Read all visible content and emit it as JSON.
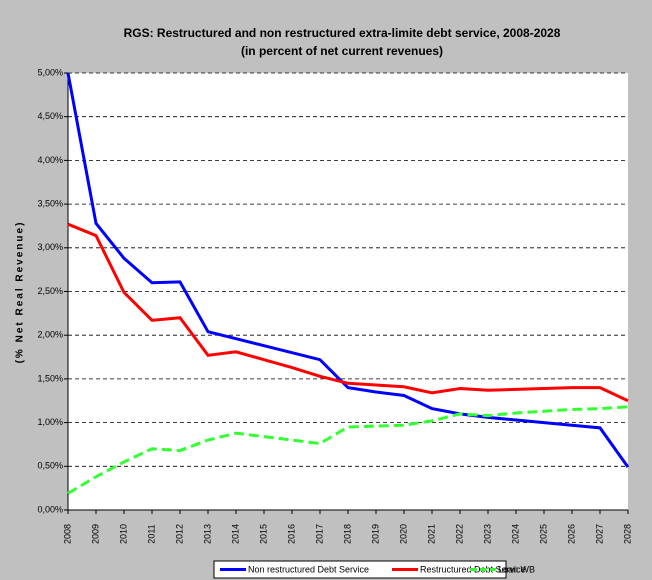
{
  "chart_data": {
    "type": "line",
    "title": "RGS: Restructured and non restructured extra-limite debt service, 2008-2028",
    "subtitle": "(in percent of net current revenues)",
    "y_label": "(% Net Real Revenue)",
    "categories": [
      "2008",
      "2009",
      "2010",
      "2011",
      "2012",
      "2013",
      "2014",
      "2015",
      "2016",
      "2017",
      "2018",
      "2019",
      "2020",
      "2021",
      "2022",
      "2023",
      "2024",
      "2025",
      "2026",
      "2027",
      "2028"
    ],
    "series": [
      {
        "name": "Non restructured Debt Service",
        "color": "#0000ff",
        "line_style": "solid",
        "values": [
          5.0,
          3.28,
          2.88,
          2.6,
          2.61,
          2.04,
          1.96,
          1.88,
          1.8,
          1.72,
          1.4,
          1.35,
          1.31,
          1.16,
          1.1,
          1.06,
          1.03,
          1.0,
          0.97,
          0.94,
          0.49
        ]
      },
      {
        "name": "Restructured Debt Service",
        "color": "#ff0000",
        "line_style": "solid",
        "values": [
          3.27,
          3.14,
          2.49,
          2.17,
          2.2,
          1.77,
          1.81,
          1.72,
          1.63,
          1.53,
          1.45,
          1.43,
          1.41,
          1.34,
          1.39,
          1.37,
          1.38,
          1.39,
          1.4,
          1.4,
          1.25
        ]
      },
      {
        "name": "Loan WB",
        "color": "#33ff33",
        "line_style": "dashed",
        "values": [
          0.19,
          0.38,
          0.55,
          0.7,
          0.68,
          0.8,
          0.88,
          0.84,
          0.8,
          0.76,
          0.95,
          0.96,
          0.97,
          1.02,
          1.1,
          1.08,
          1.11,
          1.13,
          1.15,
          1.16,
          1.18
        ]
      }
    ],
    "ylim": [
      0,
      5
    ],
    "yticks": [
      {
        "value": 0,
        "label": "0,00%"
      },
      {
        "value": 0.5,
        "label": "0,50%"
      },
      {
        "value": 1,
        "label": "1,00%"
      },
      {
        "value": 1.5,
        "label": "1,50%"
      },
      {
        "value": 2,
        "label": "2,00%"
      },
      {
        "value": 2.5,
        "label": "2,50%"
      },
      {
        "value": 3,
        "label": "3,00%"
      },
      {
        "value": 3.5,
        "label": "3,50%"
      },
      {
        "value": 4,
        "label": "4,00%"
      },
      {
        "value": 4.5,
        "label": "4,50%"
      },
      {
        "value": 5,
        "label": "5,00%"
      }
    ],
    "grid": true,
    "legend": "bottom"
  }
}
